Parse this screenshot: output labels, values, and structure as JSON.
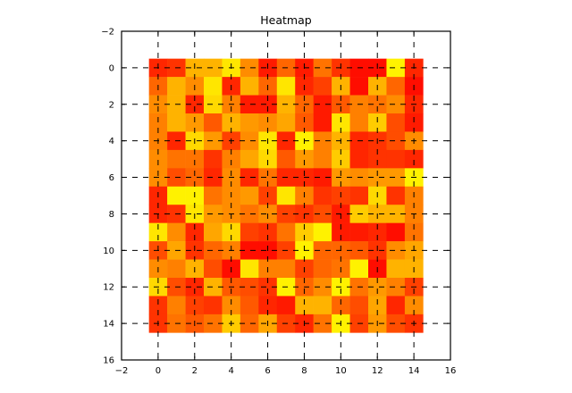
{
  "chart_data": {
    "type": "heatmap",
    "title": "Heatmap",
    "xlabel": "",
    "ylabel": "",
    "xlim": [
      -2,
      16
    ],
    "ylim": [
      16,
      -2
    ],
    "xticks": [
      "−2",
      "0",
      "2",
      "4",
      "6",
      "8",
      "10",
      "12",
      "14",
      "16"
    ],
    "yticks": [
      "−2",
      "0",
      "2",
      "4",
      "6",
      "8",
      "10",
      "12",
      "14",
      "16"
    ],
    "grid": true,
    "colormap": "autumn",
    "colors": {
      "low": "#FF0000",
      "high": "#FFFF00"
    },
    "rows": 15,
    "cols": 15,
    "values": [
      [
        0.15,
        0.2,
        0.7,
        0.7,
        0.9,
        0.55,
        0.1,
        0.4,
        0.1,
        0.45,
        0.2,
        0.05,
        0.05,
        0.95,
        0.15
      ],
      [
        0.4,
        0.7,
        0.55,
        0.9,
        0.15,
        0.7,
        0.4,
        0.9,
        0.15,
        0.25,
        0.7,
        0.05,
        0.7,
        0.4,
        0.05
      ],
      [
        0.55,
        0.7,
        0.15,
        0.85,
        0.5,
        0.1,
        0.1,
        0.7,
        0.4,
        0.1,
        0.35,
        0.5,
        0.45,
        0.55,
        0.15
      ],
      [
        0.5,
        0.7,
        0.6,
        0.35,
        0.7,
        0.6,
        0.55,
        0.65,
        0.35,
        0.1,
        0.9,
        0.5,
        0.8,
        0.3,
        0.1
      ],
      [
        0.5,
        0.15,
        0.85,
        0.6,
        0.25,
        0.55,
        0.9,
        0.15,
        0.95,
        0.5,
        0.7,
        0.15,
        0.2,
        0.3,
        0.55
      ],
      [
        0.55,
        0.45,
        0.45,
        0.2,
        0.5,
        0.65,
        0.85,
        0.35,
        0.6,
        0.5,
        0.8,
        0.15,
        0.2,
        0.2,
        0.15
      ],
      [
        0.55,
        0.3,
        0.4,
        0.15,
        0.55,
        0.15,
        0.45,
        0.15,
        0.15,
        0.1,
        0.6,
        0.55,
        0.6,
        0.6,
        0.95
      ],
      [
        0.15,
        0.95,
        0.95,
        0.45,
        0.55,
        0.6,
        0.25,
        0.9,
        0.5,
        0.2,
        0.25,
        0.2,
        0.85,
        0.2,
        0.5
      ],
      [
        0.15,
        0.2,
        0.9,
        0.6,
        0.55,
        0.45,
        0.55,
        0.25,
        0.2,
        0.3,
        0.1,
        0.8,
        0.7,
        0.7,
        0.5
      ],
      [
        0.9,
        0.55,
        0.15,
        0.65,
        0.85,
        0.25,
        0.2,
        0.45,
        0.8,
        0.95,
        0.1,
        0.1,
        0.15,
        0.05,
        0.45
      ],
      [
        0.3,
        0.65,
        0.2,
        0.4,
        0.5,
        0.05,
        0.05,
        0.25,
        0.95,
        0.4,
        0.4,
        0.35,
        0.2,
        0.55,
        0.65
      ],
      [
        0.55,
        0.5,
        0.7,
        0.3,
        0.05,
        0.9,
        0.5,
        0.5,
        0.25,
        0.4,
        0.45,
        0.95,
        0.05,
        0.7,
        0.7
      ],
      [
        0.85,
        0.3,
        0.15,
        0.7,
        0.35,
        0.3,
        0.2,
        0.95,
        0.4,
        0.55,
        0.95,
        0.45,
        0.6,
        0.5,
        0.25
      ],
      [
        0.2,
        0.5,
        0.25,
        0.2,
        0.55,
        0.35,
        0.15,
        0.1,
        0.7,
        0.7,
        0.4,
        0.3,
        0.65,
        0.15,
        0.55
      ],
      [
        0.2,
        0.45,
        0.35,
        0.45,
        0.8,
        0.4,
        0.65,
        0.25,
        0.15,
        0.45,
        0.95,
        0.25,
        0.6,
        0.3,
        0.2
      ]
    ]
  }
}
